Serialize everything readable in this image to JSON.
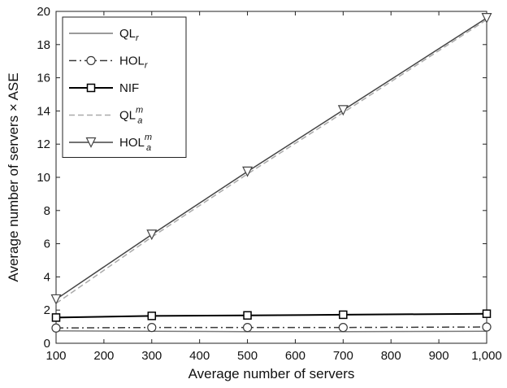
{
  "chart_data": {
    "type": "line",
    "xlabel": "Average number of servers",
    "ylabel": "Average number of servers × ASE",
    "x": [
      100,
      300,
      500,
      700,
      1000
    ],
    "xlim": [
      100,
      1000
    ],
    "ylim": [
      0,
      20
    ],
    "x_ticks": [
      100,
      200,
      300,
      400,
      500,
      600,
      700,
      800,
      900,
      1000
    ],
    "x_tick_labels": [
      "100",
      "200",
      "300",
      "400",
      "500",
      "600",
      "700",
      "800",
      "900",
      "1,000"
    ],
    "y_ticks": [
      0,
      2,
      4,
      6,
      8,
      10,
      12,
      14,
      16,
      18,
      20
    ],
    "y_tick_labels": [
      "0",
      "2",
      "4",
      "6",
      "8",
      "10",
      "12",
      "14",
      "16",
      "18",
      "20"
    ],
    "grid": false,
    "legend_position": "top-left",
    "series": [
      {
        "name": "QL",
        "name_sub": "r",
        "name_sup": "",
        "values": [
          0.75,
          0.72,
          0.7,
          0.7,
          0.72
        ],
        "color": "#7a7a7a",
        "dash": "solid",
        "marker": "none"
      },
      {
        "name": "HOL",
        "name_sub": "r",
        "name_sup": "",
        "values": [
          0.92,
          0.95,
          0.95,
          0.95,
          0.98
        ],
        "color": "#3a3a3a",
        "dash": "dashdot",
        "marker": "circle"
      },
      {
        "name": "NIF",
        "name_sub": "",
        "name_sup": "",
        "values": [
          1.55,
          1.65,
          1.68,
          1.72,
          1.78
        ],
        "color": "#000000",
        "dash": "solid",
        "marker": "square"
      },
      {
        "name": "QL",
        "name_sub": "a",
        "name_sup": "m",
        "values": [
          2.4,
          6.4,
          10.2,
          13.9,
          19.5
        ],
        "color": "#aaaaaa",
        "dash": "dashed",
        "marker": "none"
      },
      {
        "name": "HOL",
        "name_sub": "a",
        "name_sup": "m",
        "values": [
          2.65,
          6.55,
          10.35,
          14.05,
          19.6
        ],
        "color": "#444444",
        "dash": "solid",
        "marker": "triangle-down"
      }
    ]
  }
}
